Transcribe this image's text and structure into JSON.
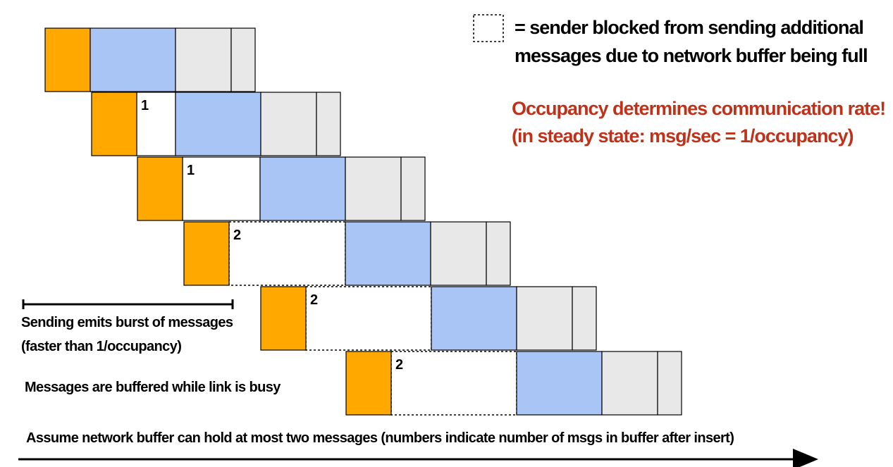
{
  "legend": {
    "line1": "= sender blocked from sending additional",
    "line2": "messages due to network buffer being full"
  },
  "note": {
    "line1": "Occupancy determines communication rate!",
    "line2": "(in steady state: msg/sec = 1/occupancy)",
    "color": "#c0311a"
  },
  "annotations": {
    "burst_line1": "Sending emits burst of messages",
    "burst_line2": "(faster than 1/occupancy)",
    "buffered": "Messages are buffered while link is busy",
    "assumption": "Assume network buffer can hold at most two messages (numbers indicate number of msgs in buffer after insert)"
  },
  "colors": {
    "send": "#ffa800",
    "link": "#a9c5f5",
    "receive": "#e8e8e8",
    "outline": "#000000",
    "blocked": "#ffffff"
  },
  "messages": [
    {
      "buffer_count": ""
    },
    {
      "buffer_count": "1"
    },
    {
      "buffer_count": "1"
    },
    {
      "buffer_count": "2"
    },
    {
      "buffer_count": "2"
    },
    {
      "buffer_count": "2"
    }
  ]
}
